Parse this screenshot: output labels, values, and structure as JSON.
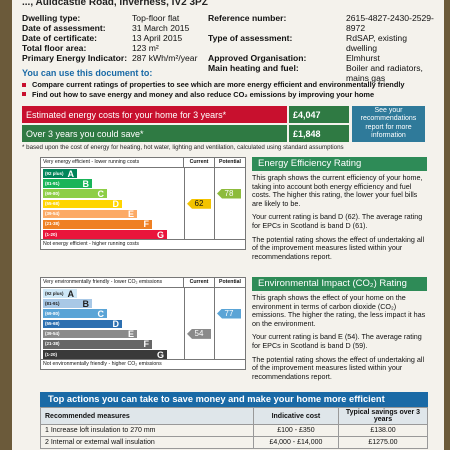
{
  "address": "..., Auldcastle Road, Inverness, IV2 3PZ",
  "left_info": [
    {
      "k": "Dwelling type:",
      "v": "Top-floor flat"
    },
    {
      "k": "Date of assessment:",
      "v": "31 March 2015"
    },
    {
      "k": "Date of certificate:",
      "v": "13 April 2015"
    },
    {
      "k": "Total floor area:",
      "v": "123 m²"
    },
    {
      "k": "Primary Energy Indicator:",
      "v": "287 kWh/m²/year"
    }
  ],
  "right_info": [
    {
      "k": "Reference number:",
      "v": "2615-4827-2430-2529-8972"
    },
    {
      "k": "Type of assessment:",
      "v": "RdSAP, existing dwelling"
    },
    {
      "k": "Approved Organisation:",
      "v": "Elmhurst"
    },
    {
      "k": "Main heating and fuel:",
      "v": "Boiler and radiators, mains gas"
    }
  ],
  "use_title": "You can use this document to:",
  "bullets": [
    "Compare current ratings of properties to see which are more energy efficient and environmentally friendly",
    "Find out how to save energy and money and also reduce CO₂ emissions by improving your home"
  ],
  "costs": [
    {
      "label": "Estimated energy costs for your home for 3 years*",
      "value": "£4,047",
      "color": "#c8102e"
    },
    {
      "label": "Over 3 years you could save*",
      "value": "£1,848",
      "color": "#2f7a43"
    }
  ],
  "see_recs": "See your recommendations report for more information",
  "note": "* based upon the cost of energy for heating, hot water, lighting and ventilation, calculated using standard assumptions",
  "ee_chart": {
    "top_label": "Very energy efficient - lower running costs",
    "bottom_label": "Not energy efficient - higher running costs",
    "col_current": "Current",
    "col_potential": "Potential",
    "current": "62",
    "potential": "78",
    "current_color": "#f3c300",
    "potential_color": "#8dbb3c",
    "bands": [
      {
        "range": "(92 plus)",
        "letter": "A",
        "color": "#00855a"
      },
      {
        "range": "(81-91)",
        "letter": "B",
        "color": "#19b459"
      },
      {
        "range": "(69-80)",
        "letter": "C",
        "color": "#8dce46"
      },
      {
        "range": "(55-68)",
        "letter": "D",
        "color": "#ffd500"
      },
      {
        "range": "(39-54)",
        "letter": "E",
        "color": "#fcaa65"
      },
      {
        "range": "(21-38)",
        "letter": "F",
        "color": "#ef8023"
      },
      {
        "range": "(1-20)",
        "letter": "G",
        "color": "#e9153b"
      }
    ]
  },
  "ei_chart": {
    "top_label": "Very environmentally friendly - lower CO₂ emissions",
    "bottom_label": "Not environmentally friendly - higher CO₂ emissions",
    "col_current": "Current",
    "col_potential": "Potential",
    "current": "54",
    "potential": "77",
    "current_color": "#8a8a8a",
    "potential_color": "#5aa4d6",
    "bands": [
      {
        "range": "(92 plus)",
        "letter": "A",
        "color": "#cfe8f7"
      },
      {
        "range": "(81-91)",
        "letter": "B",
        "color": "#a8c8e6"
      },
      {
        "range": "(69-80)",
        "letter": "C",
        "color": "#5aa4d6"
      },
      {
        "range": "(55-68)",
        "letter": "D",
        "color": "#2c6fb0"
      },
      {
        "range": "(39-54)",
        "letter": "E",
        "color": "#8a8a8a"
      },
      {
        "range": "(21-38)",
        "letter": "F",
        "color": "#666666"
      },
      {
        "range": "(1-20)",
        "letter": "G",
        "color": "#3a3a3a"
      }
    ]
  },
  "ee_text": {
    "heading": "Energy Efficiency Rating",
    "p1": "This graph shows the current efficiency of your home, taking into account both energy efficiency and fuel costs. The higher this rating, the lower your fuel bills are likely to be.",
    "p2": "Your current rating is band D (62). The average rating for EPCs in Scotland is band D (61).",
    "p3": "The potential rating shows the effect of undertaking all of the improvement measures listed within your recommendations report."
  },
  "ei_text": {
    "heading": "Environmental Impact (CO₂) Rating",
    "p1": "This graph shows the effect of your home on the environment in terms of carbon dioxide (CO₂) emissions. The higher the rating, the less impact it has on the environment.",
    "p2": "Your current rating is band E (54). The average rating for EPCs in Scotland is band D (59).",
    "p3": "The potential rating shows the effect of undertaking all of the improvement measures listed within your recommendations report."
  },
  "actions": {
    "title": "Top actions you can take to save money and make your home more efficient",
    "headers": [
      "Recommended measures",
      "Indicative cost",
      "Typical savings over 3 years"
    ],
    "rows": [
      [
        "1 Increase loft insulation to 270 mm",
        "£100 - £350",
        "£138.00"
      ],
      [
        "2 Internal or external wall insulation",
        "£4,000 - £14,000",
        "£1275.00"
      ]
    ]
  }
}
